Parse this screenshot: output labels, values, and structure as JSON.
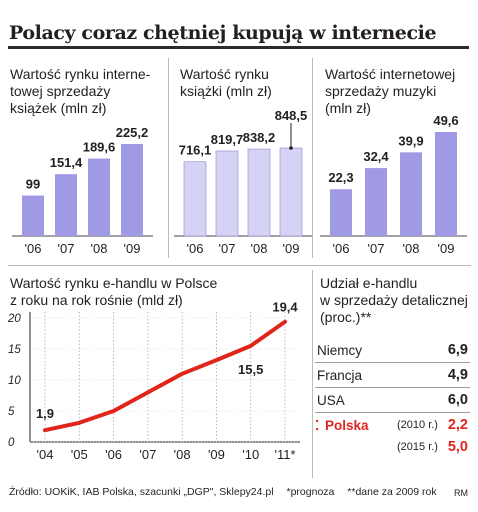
{
  "title": "Polacy coraz chętniej kupują w internecie",
  "colors": {
    "bar_dark": "#a09ae4",
    "bar_light": "#d5d3f4",
    "bar_stroke": "#8c86d2",
    "line": "#e1251b",
    "accent_red": "#e1251b"
  },
  "chart_data": [
    {
      "type": "bar",
      "title": "Wartość rynku interne-\ntowej sprzedaży\nksiążek (mln zł)",
      "categories": [
        "'06",
        "'07",
        "'08",
        "'09"
      ],
      "values": [
        99,
        151.4,
        189.6,
        225.2
      ],
      "labels": [
        "99",
        "151,4",
        "189,6",
        "225,2"
      ],
      "ylim": [
        0,
        250
      ]
    },
    {
      "type": "bar",
      "title": "Wartość rynku\nksiążki (mln zł)",
      "categories": [
        "'06",
        "'07",
        "'08",
        "'09"
      ],
      "values": [
        716.1,
        819.7,
        838.2,
        848.5
      ],
      "labels": [
        "716,1",
        "819,7",
        "838,2",
        "848,5"
      ],
      "ylim": [
        0,
        900
      ]
    },
    {
      "type": "bar",
      "title": "Wartość internetowej\nsprzedaży muzyki\n(mln zł)",
      "categories": [
        "'06",
        "'07",
        "'08",
        "'09"
      ],
      "values": [
        22.3,
        32.4,
        39.9,
        49.6
      ],
      "labels": [
        "22,3",
        "32,4",
        "39,9",
        "49,6"
      ],
      "ylim": [
        0,
        55
      ]
    },
    {
      "type": "line",
      "title": "Wartość rynku e-handlu w Polsce\nz roku na rok rośnie (mld zł)",
      "categories": [
        "'04",
        "'05",
        "'06",
        "'07",
        "'08",
        "'09",
        "'10",
        "'11*"
      ],
      "values": [
        1.9,
        3.1,
        5.0,
        8.0,
        11.0,
        13.2,
        15.5,
        19.4
      ],
      "point_labels": [
        {
          "index": 0,
          "text": "1,9"
        },
        {
          "index": 6,
          "text": "15,5"
        },
        {
          "index": 7,
          "text": "19,4"
        }
      ],
      "yticks": [
        "0",
        "5",
        "10",
        "15",
        "20"
      ],
      "ylim": [
        0,
        20
      ]
    },
    {
      "type": "table",
      "title": "Udział e-handlu\nw sprzedaży detalicznej\n(proc.)**",
      "rows": [
        {
          "country": "Niemcy",
          "value": "6,9"
        },
        {
          "country": "Francja",
          "value": "4,9"
        },
        {
          "country": "USA",
          "value": "6,0"
        },
        {
          "country": "Polska",
          "year": "(2010 r.)",
          "value": "2,2"
        },
        {
          "country": "",
          "year": "(2015 r.)",
          "value": "5,0"
        }
      ]
    }
  ],
  "footer": {
    "source": "Źródło: UOKiK, IAB Polska, szacunki „DGP\", Sklepy24.pl",
    "note1": "*prognoza",
    "note2": "**dane za 2009 rok",
    "credit": "RM"
  }
}
